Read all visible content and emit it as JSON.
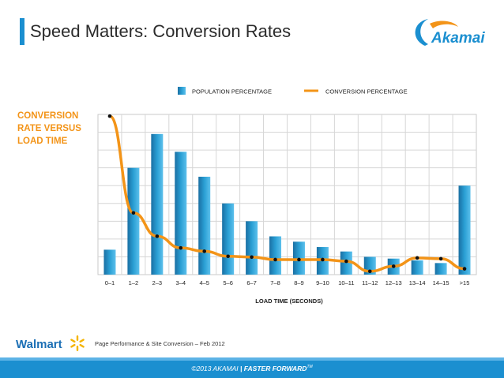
{
  "page": {
    "title": "Speed Matters: Conversion Rates",
    "side_label": "CONVERSION RATE VERSUS LOAD TIME",
    "footnote": "Page  Performance & Site Conversion – Feb 2012",
    "footer_copyright": "©2013 AKAMAI",
    "footer_separator": "|",
    "footer_tagline": "FASTER FORWARD",
    "footer_tm": "TM",
    "akamai_logo_text": "Akamai",
    "walmart_logo_text": "Walmart"
  },
  "colors": {
    "accent_blue": "#1b8fd0",
    "bar_blue": "#2a9fd4",
    "line_orange": "#f39418",
    "marker": "#111111"
  },
  "icons": [
    "akamai-logo-icon",
    "walmart-spark-icon"
  ],
  "chart_data": {
    "type": "bar",
    "title": "",
    "xlabel": "LOAD TIME (SECONDS)",
    "ylabel": "",
    "categories": [
      "0–1",
      "1–2",
      "2–3",
      "3–4",
      "4–5",
      "5–6",
      "6–7",
      "7–8",
      "8–9",
      "9–10",
      "10–11",
      "11–12",
      "12–13",
      "13–14",
      "14–15",
      ">15"
    ],
    "series": [
      {
        "name": "POPULATION PERCENTAGE",
        "kind": "bar",
        "values": [
          1.4,
          6.0,
          7.9,
          6.9,
          5.5,
          4.0,
          3.0,
          2.15,
          1.85,
          1.55,
          1.3,
          1.0,
          0.9,
          0.8,
          0.65,
          5.0
        ]
      },
      {
        "name": "CONVERSION PERCENTAGE",
        "kind": "line",
        "values": [
          8.3,
          2.5,
          1.1,
          0.4,
          0.2,
          -0.1,
          -0.15,
          -0.3,
          -0.3,
          -0.3,
          -0.4,
          -1.0,
          -0.7,
          -0.2,
          -0.25,
          -0.85
        ]
      }
    ],
    "ylim": [
      -1.2,
      8.4
    ],
    "grid": true,
    "legend": "top-center"
  }
}
